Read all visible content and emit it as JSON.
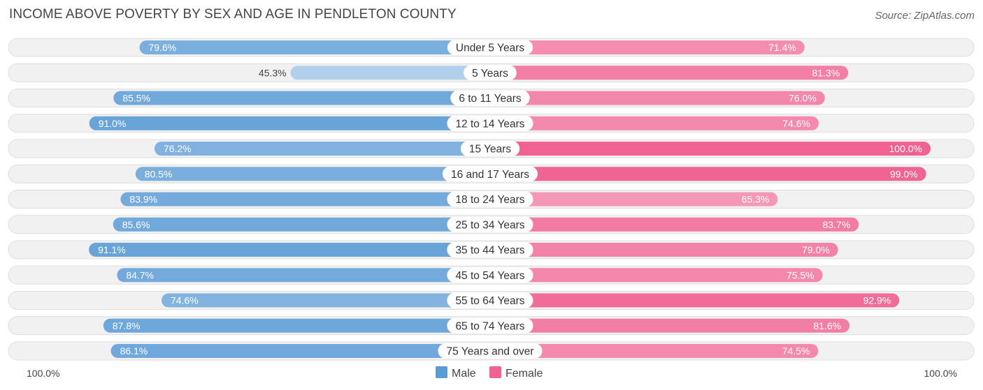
{
  "header": {
    "title": "INCOME ABOVE POVERTY BY SEX AND AGE IN PENDLETON COUNTY",
    "source": "Source: ZipAtlas.com"
  },
  "chart_data": {
    "type": "bar",
    "orientation": "horizontal-diverging",
    "title": "INCOME ABOVE POVERTY BY SEX AND AGE IN PENDLETON COUNTY",
    "categories": [
      "Under 5 Years",
      "5 Years",
      "6 to 11 Years",
      "12 to 14 Years",
      "15 Years",
      "16 and 17 Years",
      "18 to 24 Years",
      "25 to 34 Years",
      "35 to 44 Years",
      "45 to 54 Years",
      "55 to 64 Years",
      "65 to 74 Years",
      "75 Years and over"
    ],
    "series": [
      {
        "name": "Male",
        "color": "#5b9bd5",
        "values": [
          79.6,
          45.3,
          85.5,
          91.0,
          76.2,
          80.5,
          83.9,
          85.6,
          91.1,
          84.7,
          74.6,
          87.8,
          86.1
        ],
        "labels": [
          "79.6%",
          "45.3%",
          "85.5%",
          "91.0%",
          "76.2%",
          "80.5%",
          "83.9%",
          "85.6%",
          "91.1%",
          "84.7%",
          "74.6%",
          "87.8%",
          "86.1%"
        ]
      },
      {
        "name": "Female",
        "color": "#f06292",
        "values": [
          71.4,
          81.3,
          76.0,
          74.6,
          100.0,
          99.0,
          65.3,
          83.7,
          79.0,
          75.5,
          92.9,
          81.6,
          74.5
        ],
        "labels": [
          "71.4%",
          "81.3%",
          "76.0%",
          "74.6%",
          "100.0%",
          "99.0%",
          "65.3%",
          "83.7%",
          "79.0%",
          "75.5%",
          "92.9%",
          "81.6%",
          "74.5%"
        ]
      }
    ],
    "xlim": [
      0,
      100
    ],
    "axis_left_label": "100.0%",
    "axis_right_label": "100.0%",
    "legend": [
      "Male",
      "Female"
    ],
    "legend_position": "bottom-center"
  }
}
